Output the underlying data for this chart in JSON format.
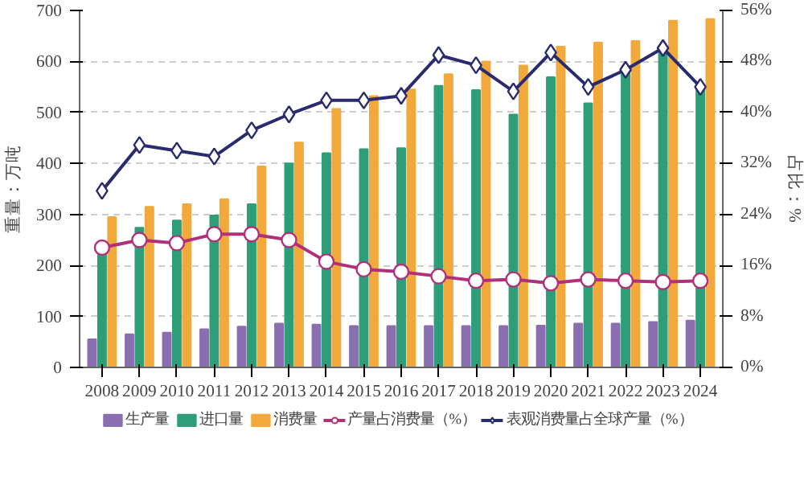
{
  "chart_data": {
    "type": "bar",
    "ylabel": "重量：万吨",
    "y2label": "占比：%",
    "categories": [
      "2008",
      "2009",
      "2010",
      "2011",
      "2012",
      "2013",
      "2014",
      "2015",
      "2016",
      "2017",
      "2018",
      "2019",
      "2020",
      "2021",
      "2022",
      "2023",
      "2024"
    ],
    "ylim": [
      0,
      700
    ],
    "yticks": [
      0,
      100,
      200,
      300,
      400,
      500,
      600,
      700
    ],
    "y2lim": [
      0,
      56
    ],
    "y2ticks": [
      {
        "value": 0,
        "label": "0%"
      },
      {
        "value": 8,
        "label": "8%"
      },
      {
        "value": 16,
        "label": "16%"
      },
      {
        "value": 24,
        "label": "24%"
      },
      {
        "value": 32,
        "label": "32%"
      },
      {
        "value": 40,
        "label": "40%"
      },
      {
        "value": 48,
        "label": "48%"
      },
      {
        "value": 56,
        "label": "56%"
      }
    ],
    "grid": "y",
    "legend": "bottom",
    "series": [
      {
        "name": "生产量",
        "color": "#8a6fb0",
        "values": [
          55,
          65,
          68,
          75,
          80,
          86,
          84,
          81,
          81,
          81,
          81,
          81,
          82,
          86,
          86,
          89,
          92
        ]
      },
      {
        "name": "进口量",
        "color": "#2e9e7a",
        "values": [
          229,
          274,
          288,
          298,
          320,
          400,
          420,
          428,
          430,
          552,
          544,
          496,
          569,
          518,
          578,
          620,
          550
        ]
      },
      {
        "name": "消费量",
        "color": "#f2a93b",
        "values": [
          295,
          315,
          320,
          330,
          394,
          441,
          507,
          532,
          545,
          575,
          600,
          592,
          629,
          637,
          640,
          680,
          683
        ]
      },
      {
        "name": "产量占消费量（%）",
        "type": "line",
        "axis": "y2",
        "marker": "circle",
        "color": "#b0307a",
        "values": [
          18.8,
          20.0,
          19.5,
          20.9,
          20.9,
          20.0,
          16.6,
          15.4,
          15.0,
          14.3,
          13.6,
          13.8,
          13.2,
          13.8,
          13.6,
          13.4,
          13.6
        ]
      },
      {
        "name": "表观消费量占全球产量（%）",
        "type": "line",
        "axis": "y2",
        "marker": "diamond",
        "color": "#2a2a6e",
        "values": [
          27.7,
          34.9,
          34.0,
          33.1,
          37.2,
          39.7,
          41.9,
          41.9,
          42.6,
          49.0,
          47.4,
          43.3,
          49.4,
          44.0,
          46.7,
          50.1,
          44.0
        ]
      }
    ]
  }
}
